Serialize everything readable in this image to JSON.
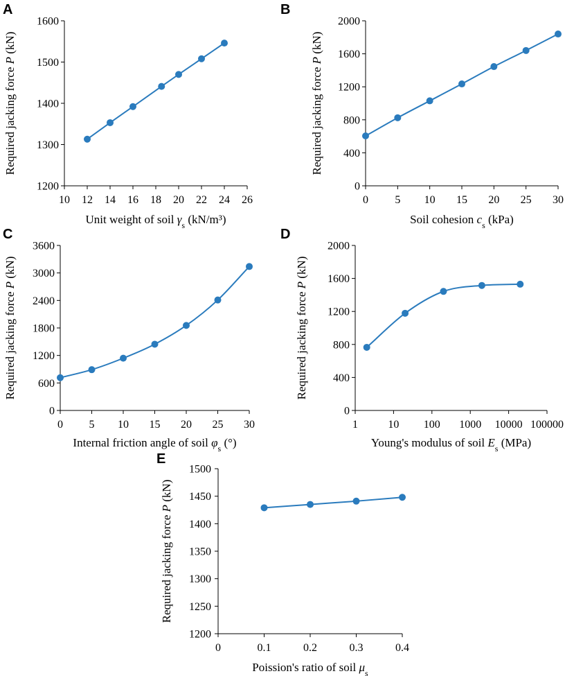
{
  "figure": {
    "series_color": "#2a7bbd",
    "axis_color": "#000000"
  },
  "chart_data": [
    {
      "id": "A",
      "panel_label": "A",
      "type": "line",
      "xscale": "linear",
      "title": "",
      "xlabel_parts": [
        {
          "t": "Unit weight of soil ",
          "s": "n"
        },
        {
          "t": "γ",
          "s": "i"
        },
        {
          "t": "s",
          "s": "sub"
        },
        {
          "t": " (kN/m³)",
          "s": "n"
        }
      ],
      "ylabel_parts": [
        {
          "t": "Required jacking force ",
          "s": "n"
        },
        {
          "t": "P",
          "s": "i"
        },
        {
          "t": " (kN)",
          "s": "n"
        }
      ],
      "xlim": [
        10,
        26
      ],
      "ylim": [
        1200,
        1600
      ],
      "xticks": [
        10,
        12,
        14,
        16,
        18,
        20,
        22,
        24,
        26
      ],
      "yticks": [
        1200,
        1300,
        1400,
        1500,
        1600
      ],
      "xtick_labels": [
        "10",
        "12",
        "14",
        "16",
        "18",
        "20",
        "22",
        "24",
        "26"
      ],
      "ytick_labels": [
        "1200",
        "1300",
        "1400",
        "1500",
        "1600"
      ],
      "x": [
        12,
        14,
        16,
        18.5,
        20,
        22,
        24
      ],
      "y": [
        1313,
        1353,
        1392,
        1441,
        1470,
        1508,
        1546
      ]
    },
    {
      "id": "B",
      "panel_label": "B",
      "type": "line",
      "xscale": "linear",
      "title": "",
      "xlabel_parts": [
        {
          "t": "Soil cohesion ",
          "s": "n"
        },
        {
          "t": "c",
          "s": "i"
        },
        {
          "t": "s",
          "s": "sub"
        },
        {
          "t": " (kPa)",
          "s": "n"
        }
      ],
      "ylabel_parts": [
        {
          "t": "Required jacking force ",
          "s": "n"
        },
        {
          "t": "P",
          "s": "i"
        },
        {
          "t": " (kN)",
          "s": "n"
        }
      ],
      "xlim": [
        0,
        30
      ],
      "ylim": [
        0,
        2000
      ],
      "xticks": [
        0,
        5,
        10,
        15,
        20,
        25,
        30
      ],
      "yticks": [
        0,
        400,
        800,
        1200,
        1600,
        2000
      ],
      "xtick_labels": [
        "0",
        "5",
        "10",
        "15",
        "20",
        "25",
        "30"
      ],
      "ytick_labels": [
        "0",
        "400",
        "800",
        "1200",
        "1600",
        "2000"
      ],
      "x": [
        0,
        5,
        10,
        15,
        20,
        25,
        30
      ],
      "y": [
        605,
        825,
        1030,
        1235,
        1445,
        1640,
        1840
      ]
    },
    {
      "id": "C",
      "panel_label": "C",
      "type": "line",
      "xscale": "linear",
      "title": "",
      "xlabel_parts": [
        {
          "t": "Internal friction angle of soil ",
          "s": "n"
        },
        {
          "t": "φ",
          "s": "i"
        },
        {
          "t": "s",
          "s": "sub"
        },
        {
          "t": " (°)",
          "s": "n"
        }
      ],
      "ylabel_parts": [
        {
          "t": "Required jacking force ",
          "s": "n"
        },
        {
          "t": "P",
          "s": "i"
        },
        {
          "t": " (kN)",
          "s": "n"
        }
      ],
      "xlim": [
        0,
        30
      ],
      "ylim": [
        0,
        3600
      ],
      "xticks": [
        0,
        5,
        10,
        15,
        20,
        25,
        30
      ],
      "yticks": [
        0,
        600,
        1200,
        1800,
        2400,
        3000,
        3600
      ],
      "xtick_labels": [
        "0",
        "5",
        "10",
        "15",
        "20",
        "25",
        "30"
      ],
      "ytick_labels": [
        "0",
        "600",
        "1200",
        "1800",
        "2400",
        "3000",
        "3600"
      ],
      "x": [
        0,
        5,
        10,
        15,
        20,
        25,
        30
      ],
      "y": [
        715,
        890,
        1140,
        1445,
        1855,
        2410,
        3140
      ]
    },
    {
      "id": "D",
      "panel_label": "D",
      "type": "line",
      "xscale": "log",
      "title": "",
      "xlabel_parts": [
        {
          "t": "Young's modulus of soil ",
          "s": "n"
        },
        {
          "t": "E",
          "s": "i"
        },
        {
          "t": "s",
          "s": "sub"
        },
        {
          "t": " (MPa)",
          "s": "n"
        }
      ],
      "ylabel_parts": [
        {
          "t": "Required jacking force ",
          "s": "n"
        },
        {
          "t": "P",
          "s": "i"
        },
        {
          "t": " (kN)",
          "s": "n"
        }
      ],
      "xlim": [
        1,
        100000
      ],
      "ylim": [
        0,
        2000
      ],
      "xticks": [
        1,
        10,
        100,
        1000,
        10000,
        100000
      ],
      "yticks": [
        0,
        400,
        800,
        1200,
        1600,
        2000
      ],
      "xtick_labels": [
        "1",
        "10",
        "100",
        "1000",
        "10000",
        "100000"
      ],
      "ytick_labels": [
        "0",
        "400",
        "800",
        "1200",
        "1600",
        "2000"
      ],
      "x": [
        2,
        20,
        200,
        2000,
        20000
      ],
      "y": [
        765,
        1178,
        1443,
        1515,
        1530
      ]
    },
    {
      "id": "E",
      "panel_label": "E",
      "type": "line",
      "xscale": "linear",
      "title": "",
      "xlabel_parts": [
        {
          "t": "Poission's ratio of soil ",
          "s": "n"
        },
        {
          "t": "μ",
          "s": "i"
        },
        {
          "t": "s",
          "s": "sub"
        }
      ],
      "ylabel_parts": [
        {
          "t": "Required jacking force ",
          "s": "n"
        },
        {
          "t": "P",
          "s": "i"
        },
        {
          "t": " (kN)",
          "s": "n"
        }
      ],
      "xlim": [
        0,
        0.4
      ],
      "ylim": [
        1200,
        1500
      ],
      "xticks": [
        0,
        0.1,
        0.2,
        0.3,
        0.4
      ],
      "yticks": [
        1200,
        1250,
        1300,
        1350,
        1400,
        1450,
        1500
      ],
      "xtick_labels": [
        "0",
        "0.1",
        "0.2",
        "0.3",
        "0.4"
      ],
      "ytick_labels": [
        "1200",
        "1250",
        "1300",
        "1350",
        "1400",
        "1450",
        "1500"
      ],
      "x": [
        0.1,
        0.2,
        0.3,
        0.4
      ],
      "y": [
        1429,
        1435,
        1441,
        1448
      ]
    }
  ]
}
